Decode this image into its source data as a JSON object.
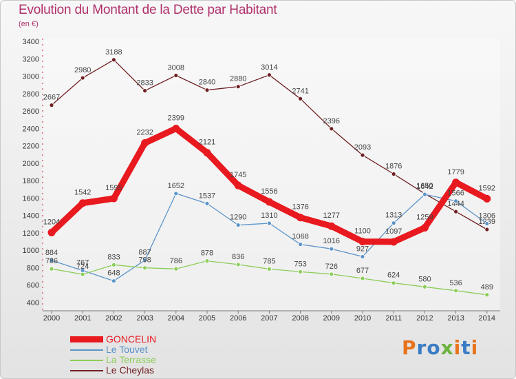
{
  "header": {
    "title": "Evolution du Montant de la Dette par Habitant",
    "subtitle": "(en €)"
  },
  "colors": {
    "title": "#b0306a",
    "axis_text": "#333333"
  },
  "chart_data": {
    "type": "line",
    "title": "Evolution du Montant de la Dette par Habitant",
    "subtitle": "(en €)",
    "xlabel": "",
    "ylabel": "",
    "x": [
      "2000",
      "2001",
      "2002",
      "2003",
      "2004",
      "2005",
      "2006",
      "2007",
      "2008",
      "2009",
      "2010",
      "2011",
      "2012",
      "2013",
      "2014"
    ],
    "ylim": [
      400,
      3400
    ],
    "yticks": [
      400,
      600,
      800,
      1000,
      1200,
      1400,
      1600,
      1800,
      2000,
      2200,
      2400,
      2600,
      2800,
      3000,
      3200,
      3400
    ],
    "grid": false,
    "legend_position": "bottom-left",
    "series": [
      {
        "name": "Le Cheylas",
        "color": "#6e1f22",
        "values": [
          2667,
          2980,
          3188,
          2833,
          3008,
          2840,
          2880,
          3014,
          2741,
          2396,
          2093,
          1876,
          1650,
          1444,
          1239
        ]
      },
      {
        "name": "Le Touvet",
        "color": "#5b94c8",
        "values": [
          884,
          767,
          648,
          887,
          1652,
          1537,
          1290,
          1310,
          1068,
          1016,
          927,
          1313,
          1642,
          1566,
          1306
        ]
      },
      {
        "name": "La Terrasse",
        "color": "#8ccd5a",
        "values": [
          786,
          724,
          833,
          798,
          786,
          878,
          836,
          785,
          753,
          726,
          677,
          624,
          580,
          536,
          489
        ]
      },
      {
        "name": "GONCELIN",
        "color": "#e8191f",
        "values": [
          1204,
          1542,
          1595,
          2232,
          2399,
          2121,
          1745,
          1556,
          1376,
          1277,
          1100,
          1097,
          1259,
          1779,
          1592
        ]
      }
    ],
    "legend": [
      "GONCELIN",
      "Le Touvet",
      "La Terrasse",
      "Le Cheylas"
    ]
  },
  "legend": {
    "items": [
      {
        "label": "GONCELIN",
        "color": "#e8191f"
      },
      {
        "label": "Le Touvet",
        "color": "#5b94c8"
      },
      {
        "label": "La Terrasse",
        "color": "#8ccd5a"
      },
      {
        "label": "Le Cheylas",
        "color": "#6e1f22"
      }
    ]
  },
  "logo": {
    "text": "Proxiti",
    "letter_colors": [
      "#e8731c",
      "#3a7cc4",
      "#3a7cc4",
      "#6db33f",
      "#e8731c",
      "#3a7cc4",
      "#e8731c"
    ]
  }
}
